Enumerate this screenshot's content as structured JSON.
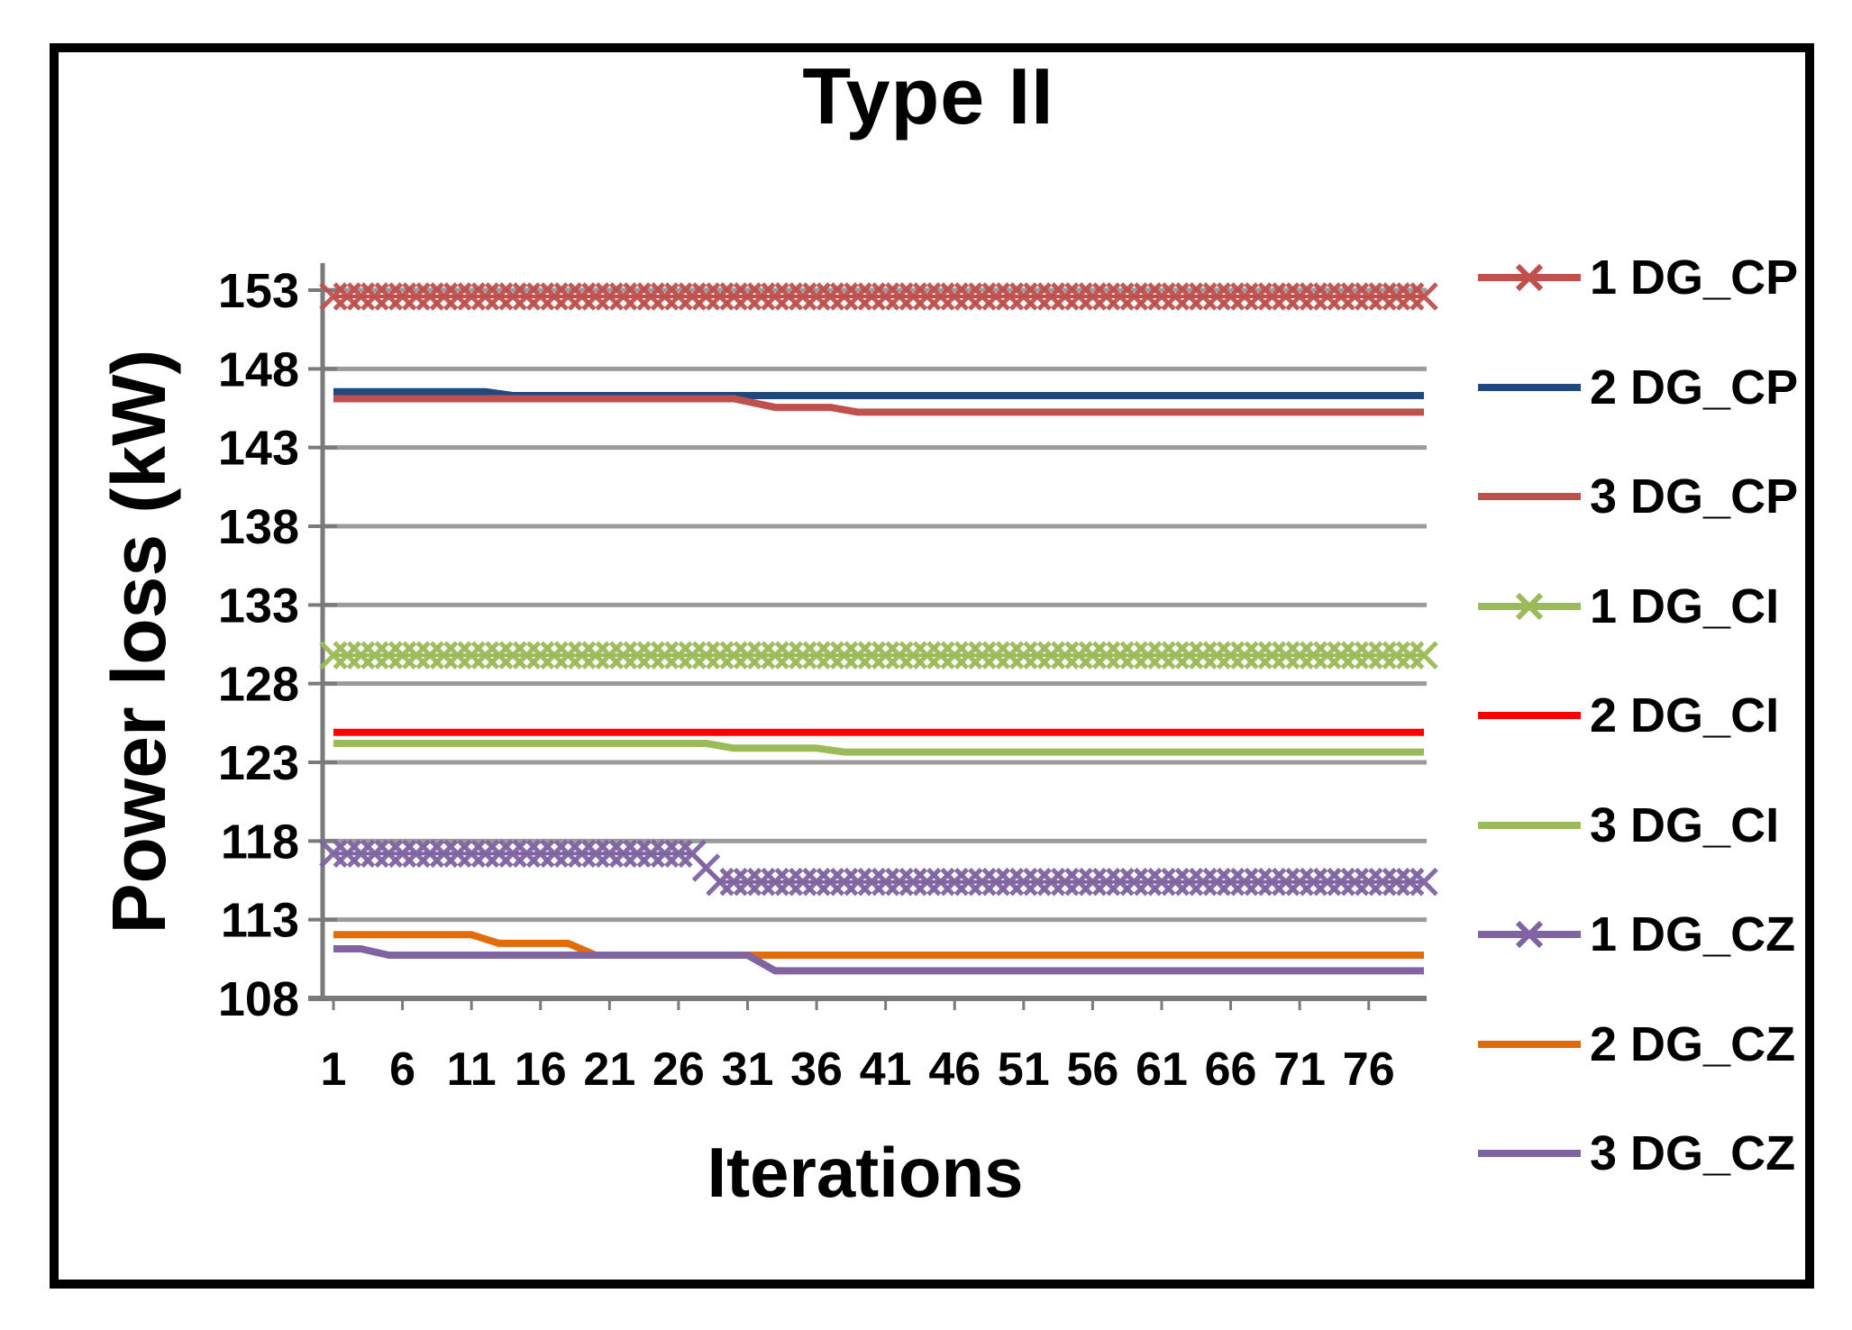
{
  "chart_data": {
    "type": "line",
    "title": "Type II",
    "xlabel": "Iterations",
    "ylabel": "Power loss (kW)",
    "xlim": [
      1,
      80
    ],
    "ylim": [
      108,
      153
    ],
    "x_ticks": [
      1,
      6,
      11,
      16,
      21,
      26,
      31,
      36,
      41,
      46,
      51,
      56,
      61,
      66,
      71,
      76
    ],
    "y_ticks": [
      108,
      113,
      118,
      123,
      128,
      133,
      138,
      143,
      148,
      153
    ],
    "grid": "horizontal",
    "legend_position": "right",
    "series": [
      {
        "name": "1 DG_CP",
        "color": "#C0504D",
        "marker": "x",
        "points": [
          [
            1,
            152.6
          ],
          [
            80,
            152.6
          ]
        ]
      },
      {
        "name": "2 DG_CP",
        "color": "#1F497D",
        "marker": null,
        "points": [
          [
            1,
            146.55
          ],
          [
            12,
            146.55
          ],
          [
            14,
            146.3
          ],
          [
            80,
            146.3
          ]
        ]
      },
      {
        "name": "3 DG_CP",
        "color": "#C0504D",
        "marker": null,
        "points": [
          [
            1,
            146.1
          ],
          [
            30,
            146.1
          ],
          [
            33,
            145.55
          ],
          [
            37,
            145.55
          ],
          [
            39,
            145.25
          ],
          [
            80,
            145.25
          ]
        ]
      },
      {
        "name": "1 DG_CI",
        "color": "#9BBB59",
        "marker": "x",
        "points": [
          [
            1,
            129.8
          ],
          [
            80,
            129.8
          ]
        ]
      },
      {
        "name": "2 DG_CI",
        "color": "#FF0000",
        "marker": null,
        "points": [
          [
            1,
            124.9
          ],
          [
            80,
            124.9
          ]
        ]
      },
      {
        "name": "3 DG_CI",
        "color": "#9BBB59",
        "marker": null,
        "points": [
          [
            1,
            124.2
          ],
          [
            28,
            124.2
          ],
          [
            30,
            123.9
          ],
          [
            36,
            123.9
          ],
          [
            38,
            123.65
          ],
          [
            80,
            123.65
          ]
        ]
      },
      {
        "name": "1 DG_CZ",
        "color": "#8064A2",
        "marker": "x",
        "points": [
          [
            1,
            117.2
          ],
          [
            27,
            117.2
          ],
          [
            29,
            115.4
          ],
          [
            80,
            115.4
          ]
        ]
      },
      {
        "name": "2 DG_CZ",
        "color": "#E36C0A",
        "marker": null,
        "points": [
          [
            1,
            112.05
          ],
          [
            11,
            112.05
          ],
          [
            13,
            111.5
          ],
          [
            18,
            111.5
          ],
          [
            20,
            110.75
          ],
          [
            80,
            110.75
          ]
        ]
      },
      {
        "name": "3 DG_CZ",
        "color": "#8064A2",
        "marker": null,
        "points": [
          [
            1,
            111.15
          ],
          [
            3,
            111.15
          ],
          [
            5,
            110.75
          ],
          [
            31,
            110.75
          ],
          [
            33,
            109.75
          ],
          [
            80,
            109.75
          ]
        ]
      }
    ],
    "style": {
      "grid_color": "#9B9B9B",
      "axis_color": "#7A7A7A",
      "text_color": "#000000",
      "frame_border_color": "#000000",
      "background": "#FFFFFF",
      "marker_glyph": "x",
      "marker_size": 14
    }
  }
}
